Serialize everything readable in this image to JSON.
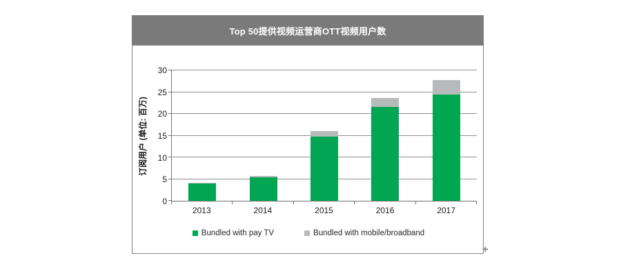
{
  "chart_data": {
    "type": "bar",
    "stacked": true,
    "title": "Top 50提供视频运营商OTT视频用户数",
    "xlabel": "",
    "ylabel": "订阅用户 (单位: 百万)",
    "categories": [
      "2013",
      "2014",
      "2015",
      "2016",
      "2017"
    ],
    "series": [
      {
        "name": "Bundled with pay TV",
        "color": "#00A651",
        "values": [
          4.0,
          5.4,
          14.8,
          21.6,
          24.5
        ]
      },
      {
        "name": "Bundled with mobile/broadband",
        "color": "#B7BABA",
        "values": [
          0.1,
          0.3,
          1.3,
          2.0,
          3.3
        ]
      }
    ],
    "ylim": [
      0,
      30
    ],
    "ytick_step": 5,
    "grid": true,
    "legend_position": "bottom"
  },
  "decor": {
    "crosshair_glyph": "+"
  },
  "colors": {
    "title_bar_bg": "#7A7A7A",
    "title_text": "#FFFFFF",
    "chart_border": "#808080",
    "gridline": "#8F8F8F",
    "axis": "#707070",
    "pay_tv_green": "#00A651",
    "broadband_gray": "#B7BABA"
  }
}
